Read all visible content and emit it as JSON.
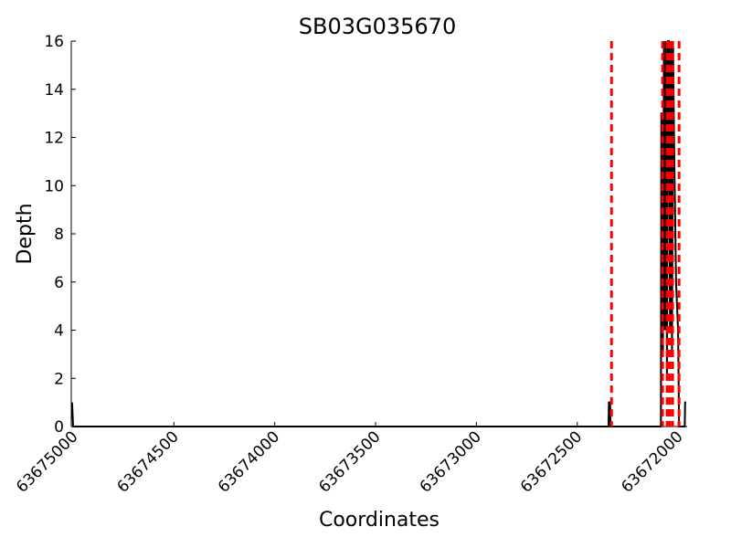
{
  "chart_data": {
    "type": "line",
    "title": "SB03G035670",
    "x_label": "Coordinates",
    "y_label": "Depth",
    "series": [
      {
        "name": "Depth",
        "color": "#000000",
        "x": [
          63675005,
          63675000,
          63672345,
          63672343,
          63672337,
          63672335,
          63672085,
          63672083,
          63672078,
          63672075,
          63672070,
          63672065,
          63672060,
          63672055,
          63672050,
          63672045,
          63672040,
          63672035,
          63672030,
          63672025,
          63672020,
          63672010,
          63672000,
          63671995,
          63671967,
          63671965,
          63671960
        ],
        "values": [
          1,
          0,
          0,
          1,
          1,
          0,
          0,
          13,
          13,
          3,
          16,
          4,
          16,
          2,
          16,
          16,
          4,
          16,
          3,
          16,
          12,
          6,
          4,
          0,
          0,
          1,
          1
        ]
      }
    ],
    "vlines": {
      "color": "#ff0000",
      "x": [
        63672330,
        63672077,
        63672054,
        63672041,
        63672027,
        63671995
      ]
    },
    "xlim": [
      63675009,
      63671955
    ],
    "xticks": [
      63675000,
      63674500,
      63674000,
      63673500,
      63673000,
      63672500,
      63672000
    ],
    "ylim": [
      0,
      16
    ],
    "yticks": [
      0,
      2,
      4,
      6,
      8,
      10,
      12,
      14,
      16
    ]
  }
}
